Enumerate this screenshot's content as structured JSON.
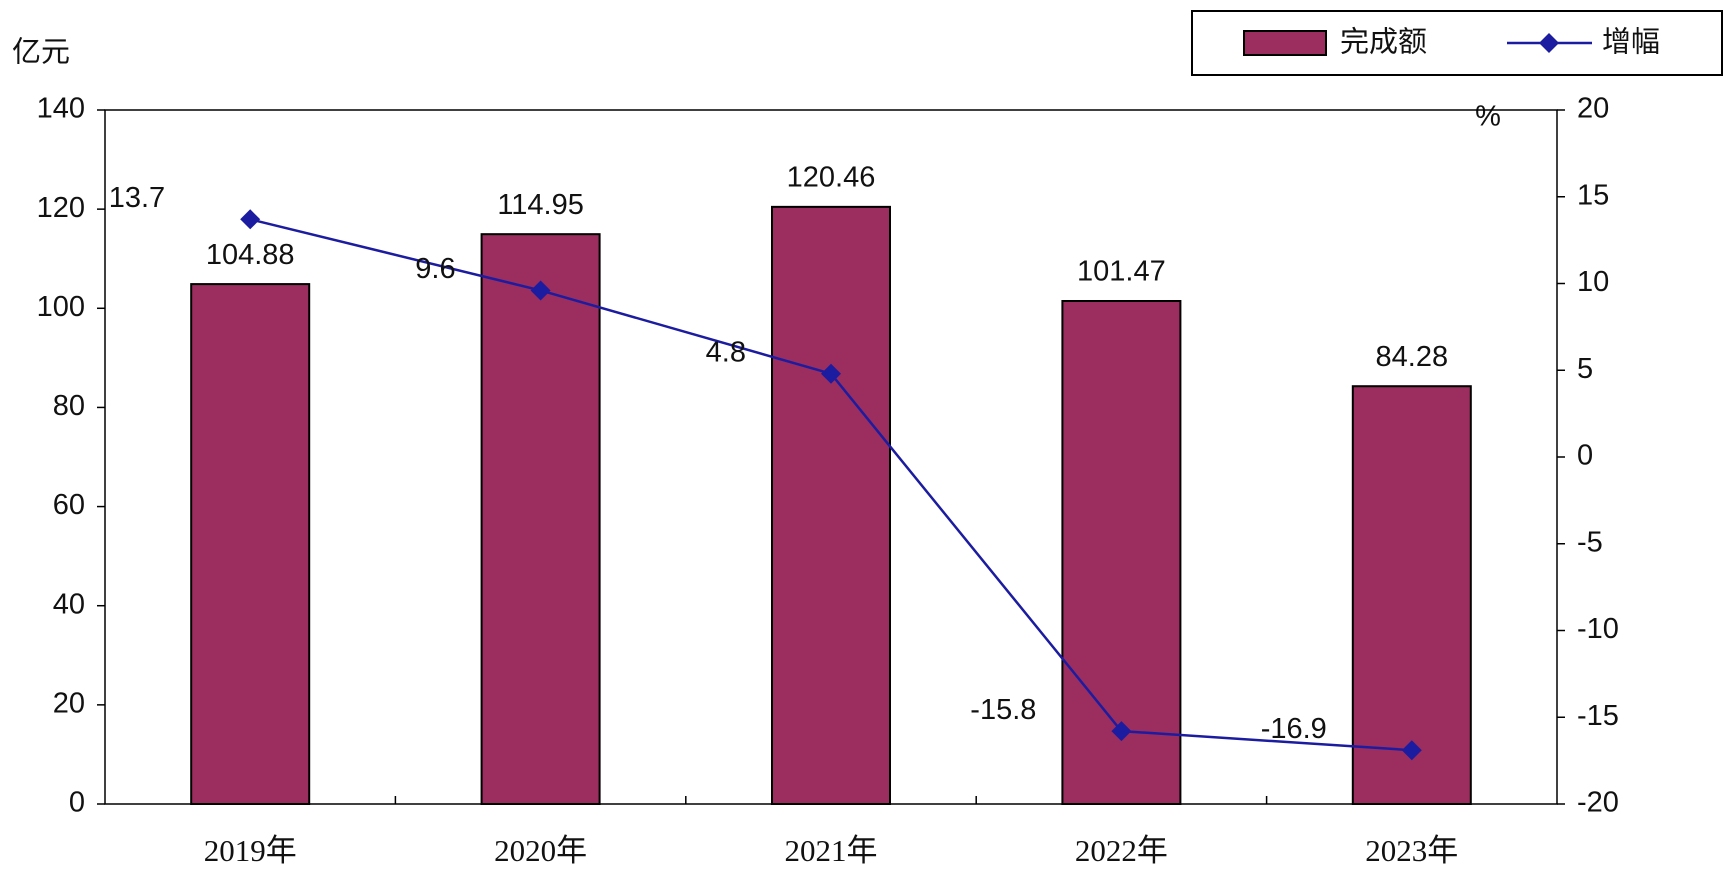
{
  "chart_data": {
    "type": "bar",
    "y_label": "亿元",
    "y2_label": "%",
    "categories": [
      "2019年",
      "2020年",
      "2021年",
      "2022年",
      "2023年"
    ],
    "series": [
      {
        "name": "完成额",
        "color": "#9b2d5f",
        "values": [
          104.88,
          114.95,
          120.46,
          101.47,
          84.28
        ]
      },
      {
        "name": "增幅",
        "type": "line",
        "axis": "y2",
        "color": "#1c1ca0",
        "values": [
          13.7,
          9.6,
          4.8,
          -15.8,
          -16.9
        ]
      }
    ],
    "ylim": [
      0,
      140
    ],
    "yticks": [
      0,
      20,
      40,
      60,
      80,
      100,
      120,
      140
    ],
    "y2lim": [
      -20,
      20
    ],
    "y2ticks": [
      -20,
      -15,
      -10,
      -5,
      0,
      5,
      10,
      15,
      20
    ],
    "legend": "top-right"
  }
}
